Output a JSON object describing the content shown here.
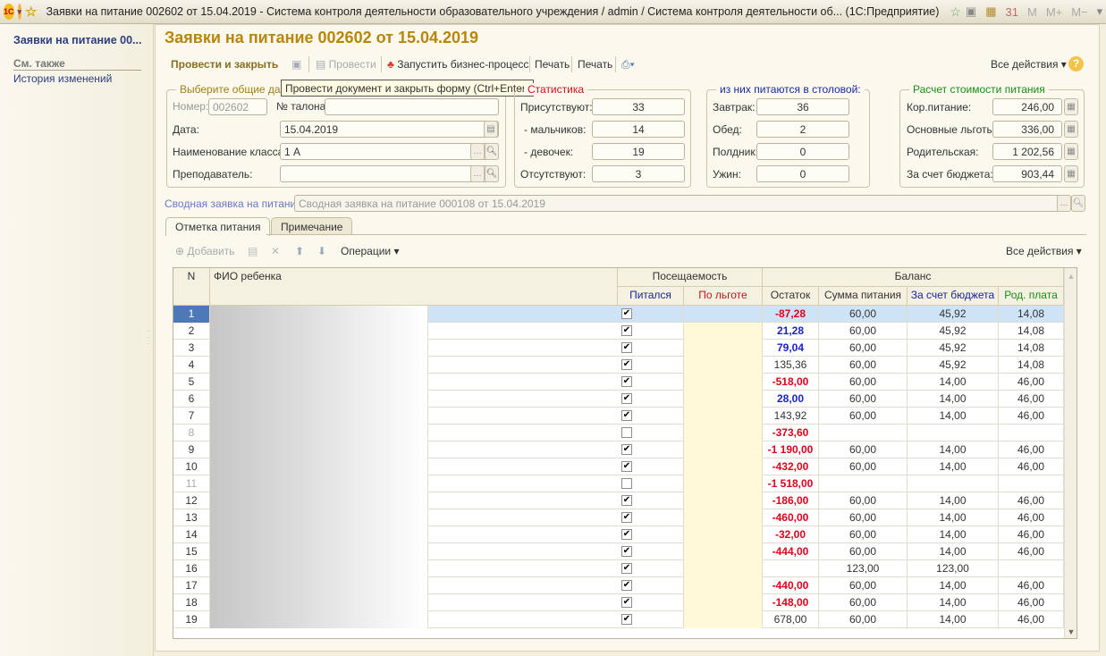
{
  "window": {
    "title": "Заявки на питание 002602 от 15.04.2019 - Система контроля деятельности образовательного учреждения / admin / Система контроля деятельности об...  (1С:Предприятие)",
    "memory_buttons": [
      "M",
      "M+",
      "M−"
    ]
  },
  "sidebar": {
    "current": "Заявки на питание 00...",
    "see_also": "См. также",
    "history": "История изменений"
  },
  "page_title": "Заявки на питание 002602 от 15.04.2019",
  "toolbar": {
    "post_close": "Провести и закрыть",
    "post": "Провести",
    "start_bp": "Запустить бизнес-процесс",
    "print1": "Печать",
    "print2": "Печать",
    "all_actions": "Все действия",
    "tooltip": "Провести документ и закрыть форму (Ctrl+Enter)"
  },
  "general": {
    "legend": "Выберите общие данные",
    "number_label": "Номер:",
    "number": "002602",
    "ticket_label": "№ талона:",
    "ticket": "",
    "date_label": "Дата:",
    "date": "15.04.2019",
    "class_label": "Наименование класса:",
    "class": "1 А",
    "teacher_label": "Преподаватель:",
    "teacher": ""
  },
  "stats": {
    "legend": "Статистика",
    "present_label": "Присутствуют:",
    "present": "33",
    "boys_label": "- мальчиков:",
    "boys": "14",
    "girls_label": "- девочек:",
    "girls": "19",
    "absent_label": "Отсутствуют:",
    "absent": "3"
  },
  "canteen": {
    "legend": "из них питаются в столовой:",
    "breakfast_label": "Завтрак:",
    "breakfast": "36",
    "lunch_label": "Обед:",
    "lunch": "2",
    "snack_label": "Полдник:",
    "snack": "0",
    "dinner_label": "Ужин:",
    "dinner": "0"
  },
  "cost": {
    "legend": "Расчет стоимости питания",
    "kor_label": "Кор.питание:",
    "kor": "246,00",
    "benefits_label": "Основные льготы:",
    "benefits": "336,00",
    "parent_label": "Родительская:",
    "parent": "1 202,56",
    "budget_label": "За счет бюджета:",
    "budget": "903,44"
  },
  "summary": {
    "label": "Сводная заявка на питание:",
    "value": "Сводная заявка на питание 000108 от 15.04.2019"
  },
  "tabs": [
    "Отметка питания",
    "Примечание"
  ],
  "table_toolbar": {
    "add": "Добавить",
    "operations": "Операции",
    "all_actions": "Все действия"
  },
  "table": {
    "headers": {
      "n": "N",
      "fio": "ФИО ребенка",
      "attendance": "Посещаемость",
      "balance": "Баланс",
      "ate": "Питался",
      "benefit": "По льготе",
      "rest": "Остаток",
      "sum": "Сумма питания",
      "budget": "За счет бюджета",
      "parent": "Род. плата"
    },
    "rows": [
      {
        "n": "1",
        "ate": true,
        "rest": "-87,28",
        "tone": "neg",
        "sum": "60,00",
        "budget": "45,92",
        "parent": "14,08"
      },
      {
        "n": "2",
        "ate": true,
        "rest": "21,28",
        "tone": "pos",
        "sum": "60,00",
        "budget": "45,92",
        "parent": "14,08"
      },
      {
        "n": "3",
        "ate": true,
        "rest": "79,04",
        "tone": "pos",
        "sum": "60,00",
        "budget": "45,92",
        "parent": "14,08"
      },
      {
        "n": "4",
        "ate": true,
        "rest": "135,36",
        "tone": "",
        "sum": "60,00",
        "budget": "45,92",
        "parent": "14,08"
      },
      {
        "n": "5",
        "ate": true,
        "rest": "-518,00",
        "tone": "neg",
        "sum": "60,00",
        "budget": "14,00",
        "parent": "46,00"
      },
      {
        "n": "6",
        "ate": true,
        "rest": "28,00",
        "tone": "pos",
        "sum": "60,00",
        "budget": "14,00",
        "parent": "46,00"
      },
      {
        "n": "7",
        "ate": true,
        "rest": "143,92",
        "tone": "",
        "sum": "60,00",
        "budget": "14,00",
        "parent": "46,00"
      },
      {
        "n": "8",
        "ate": false,
        "rest": "-373,60",
        "tone": "neg",
        "sum": "",
        "budget": "",
        "parent": ""
      },
      {
        "n": "9",
        "ate": true,
        "rest": "-1 190,00",
        "tone": "neg",
        "sum": "60,00",
        "budget": "14,00",
        "parent": "46,00"
      },
      {
        "n": "10",
        "ate": true,
        "rest": "-432,00",
        "tone": "neg",
        "sum": "60,00",
        "budget": "14,00",
        "parent": "46,00"
      },
      {
        "n": "11",
        "ate": false,
        "rest": "-1 518,00",
        "tone": "neg",
        "sum": "",
        "budget": "",
        "parent": ""
      },
      {
        "n": "12",
        "ate": true,
        "rest": "-186,00",
        "tone": "neg",
        "sum": "60,00",
        "budget": "14,00",
        "parent": "46,00"
      },
      {
        "n": "13",
        "ate": true,
        "rest": "-460,00",
        "tone": "neg",
        "sum": "60,00",
        "budget": "14,00",
        "parent": "46,00"
      },
      {
        "n": "14",
        "ate": true,
        "rest": "-32,00",
        "tone": "neg",
        "sum": "60,00",
        "budget": "14,00",
        "parent": "46,00"
      },
      {
        "n": "15",
        "ate": true,
        "rest": "-444,00",
        "tone": "neg",
        "sum": "60,00",
        "budget": "14,00",
        "parent": "46,00"
      },
      {
        "n": "16",
        "ate": true,
        "rest": "",
        "tone": "",
        "sum": "123,00",
        "budget": "123,00",
        "parent": ""
      },
      {
        "n": "17",
        "ate": true,
        "rest": "-440,00",
        "tone": "neg",
        "sum": "60,00",
        "budget": "14,00",
        "parent": "46,00"
      },
      {
        "n": "18",
        "ate": true,
        "rest": "-148,00",
        "tone": "neg",
        "sum": "60,00",
        "budget": "14,00",
        "parent": "46,00"
      },
      {
        "n": "19",
        "ate": true,
        "rest": "678,00",
        "tone": "",
        "sum": "60,00",
        "budget": "14,00",
        "parent": "46,00"
      }
    ]
  },
  "colors": {
    "accent": "#b8860b",
    "negative": "#e0001a",
    "positive": "#1a23c8",
    "selected_row": "#cfe3f7",
    "benefit_col": "#fff9d9"
  }
}
